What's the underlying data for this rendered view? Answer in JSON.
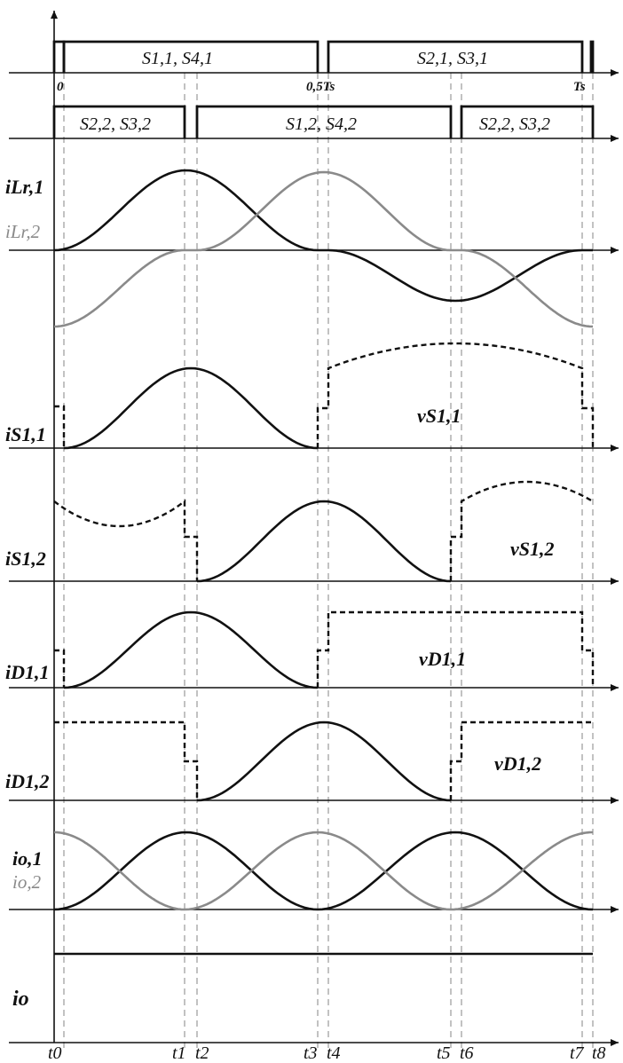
{
  "switch_labels": {
    "s11_s41": "S1,1, S4,1",
    "s21_s31": "S2,1, S3,1",
    "s22_s32_a": "S2,2, S3,2",
    "s12_s42": "S1,2, S4,2",
    "s22_s32_b": "S2,2, S3,2"
  },
  "period_marks": {
    "zero": "0",
    "half": "0,5Ts",
    "full": "Ts"
  },
  "signals": {
    "iLr1": "iLr,1",
    "iLr2": "iLr,2",
    "iS11": "iS1,1",
    "vS11": "vS1,1",
    "iS12": "iS1,2",
    "vS12": "vS1,2",
    "iD11": "iD1,1",
    "vD11": "vD1,1",
    "iD12": "iD1,2",
    "vD12": "vD1,2",
    "io1": "io,1",
    "io2": "io,2",
    "io": "io"
  },
  "time_labels": [
    "t0",
    "t1",
    "t2",
    "t3",
    "t4",
    "t5",
    "t6",
    "t7",
    "t8"
  ],
  "colors": {
    "primary": "#111111",
    "secondary": "#8a8a8a",
    "guide": "#9a9a9a"
  }
}
